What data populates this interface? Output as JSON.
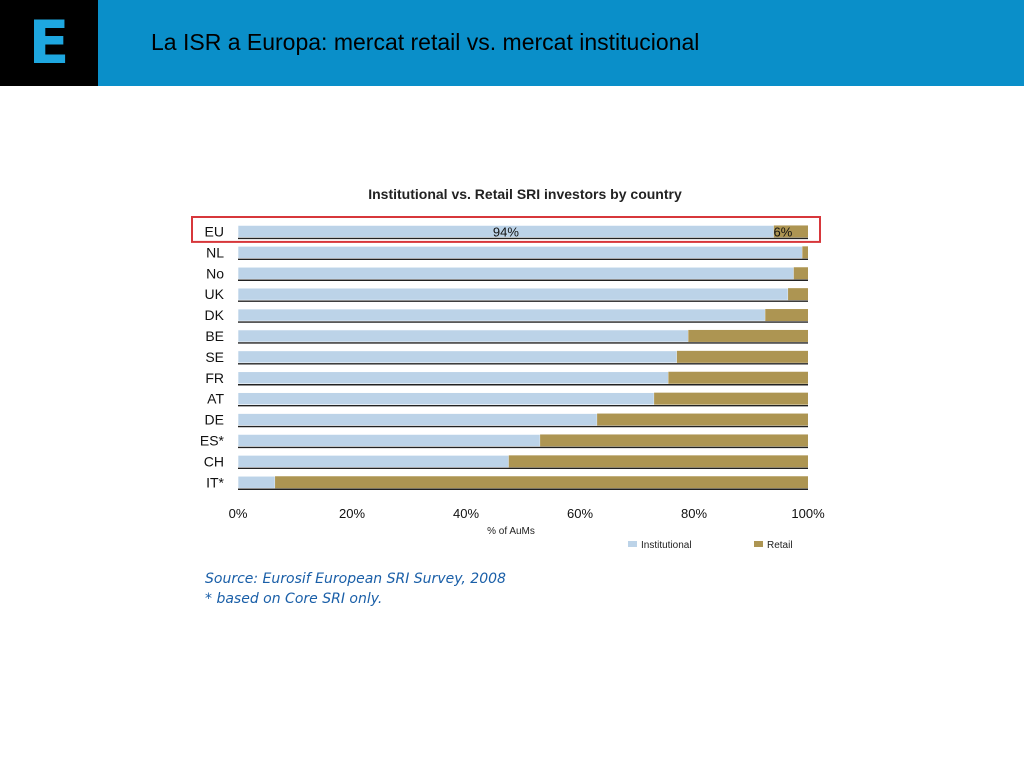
{
  "slide": {
    "logo_letter": "E",
    "title": "La ISR a Europa: mercat retail vs. mercat institucional"
  },
  "colors": {
    "header": "#0a8fc9",
    "institutional": "#bcd3e8",
    "retail": "#ad9552",
    "highlight": "#d7373b",
    "source_text": "#1a5fa8"
  },
  "chart_data": {
    "type": "bar",
    "orientation": "horizontal",
    "stacked": true,
    "title": "Institutional vs. Retail SRI investors by country",
    "xlabel": "% of AuMs",
    "ylabel": "",
    "xlim": [
      0,
      100
    ],
    "xticks": [
      "0%",
      "20%",
      "40%",
      "60%",
      "80%",
      "100%"
    ],
    "categories": [
      "EU",
      "NL",
      "No",
      "UK",
      "DK",
      "BE",
      "SE",
      "FR",
      "AT",
      "DE",
      "ES*",
      "CH",
      "IT*"
    ],
    "series": [
      {
        "name": "Institutional",
        "values": [
          94,
          99,
          97.5,
          96.5,
          92.5,
          79,
          77,
          75.5,
          73,
          63,
          53,
          47.5,
          6.5
        ]
      },
      {
        "name": "Retail",
        "values": [
          6,
          1,
          2.5,
          3.5,
          7.5,
          21,
          23,
          24.5,
          27,
          37,
          47,
          52.5,
          93.5
        ]
      }
    ],
    "data_labels": {
      "institutional": "94%",
      "retail": "6%"
    },
    "highlighted_category": "EU",
    "legend_position": "bottom-right"
  },
  "source": {
    "line1": "Source: Eurosif European SRI Survey, 2008",
    "line2": "* based on Core SRI only."
  }
}
